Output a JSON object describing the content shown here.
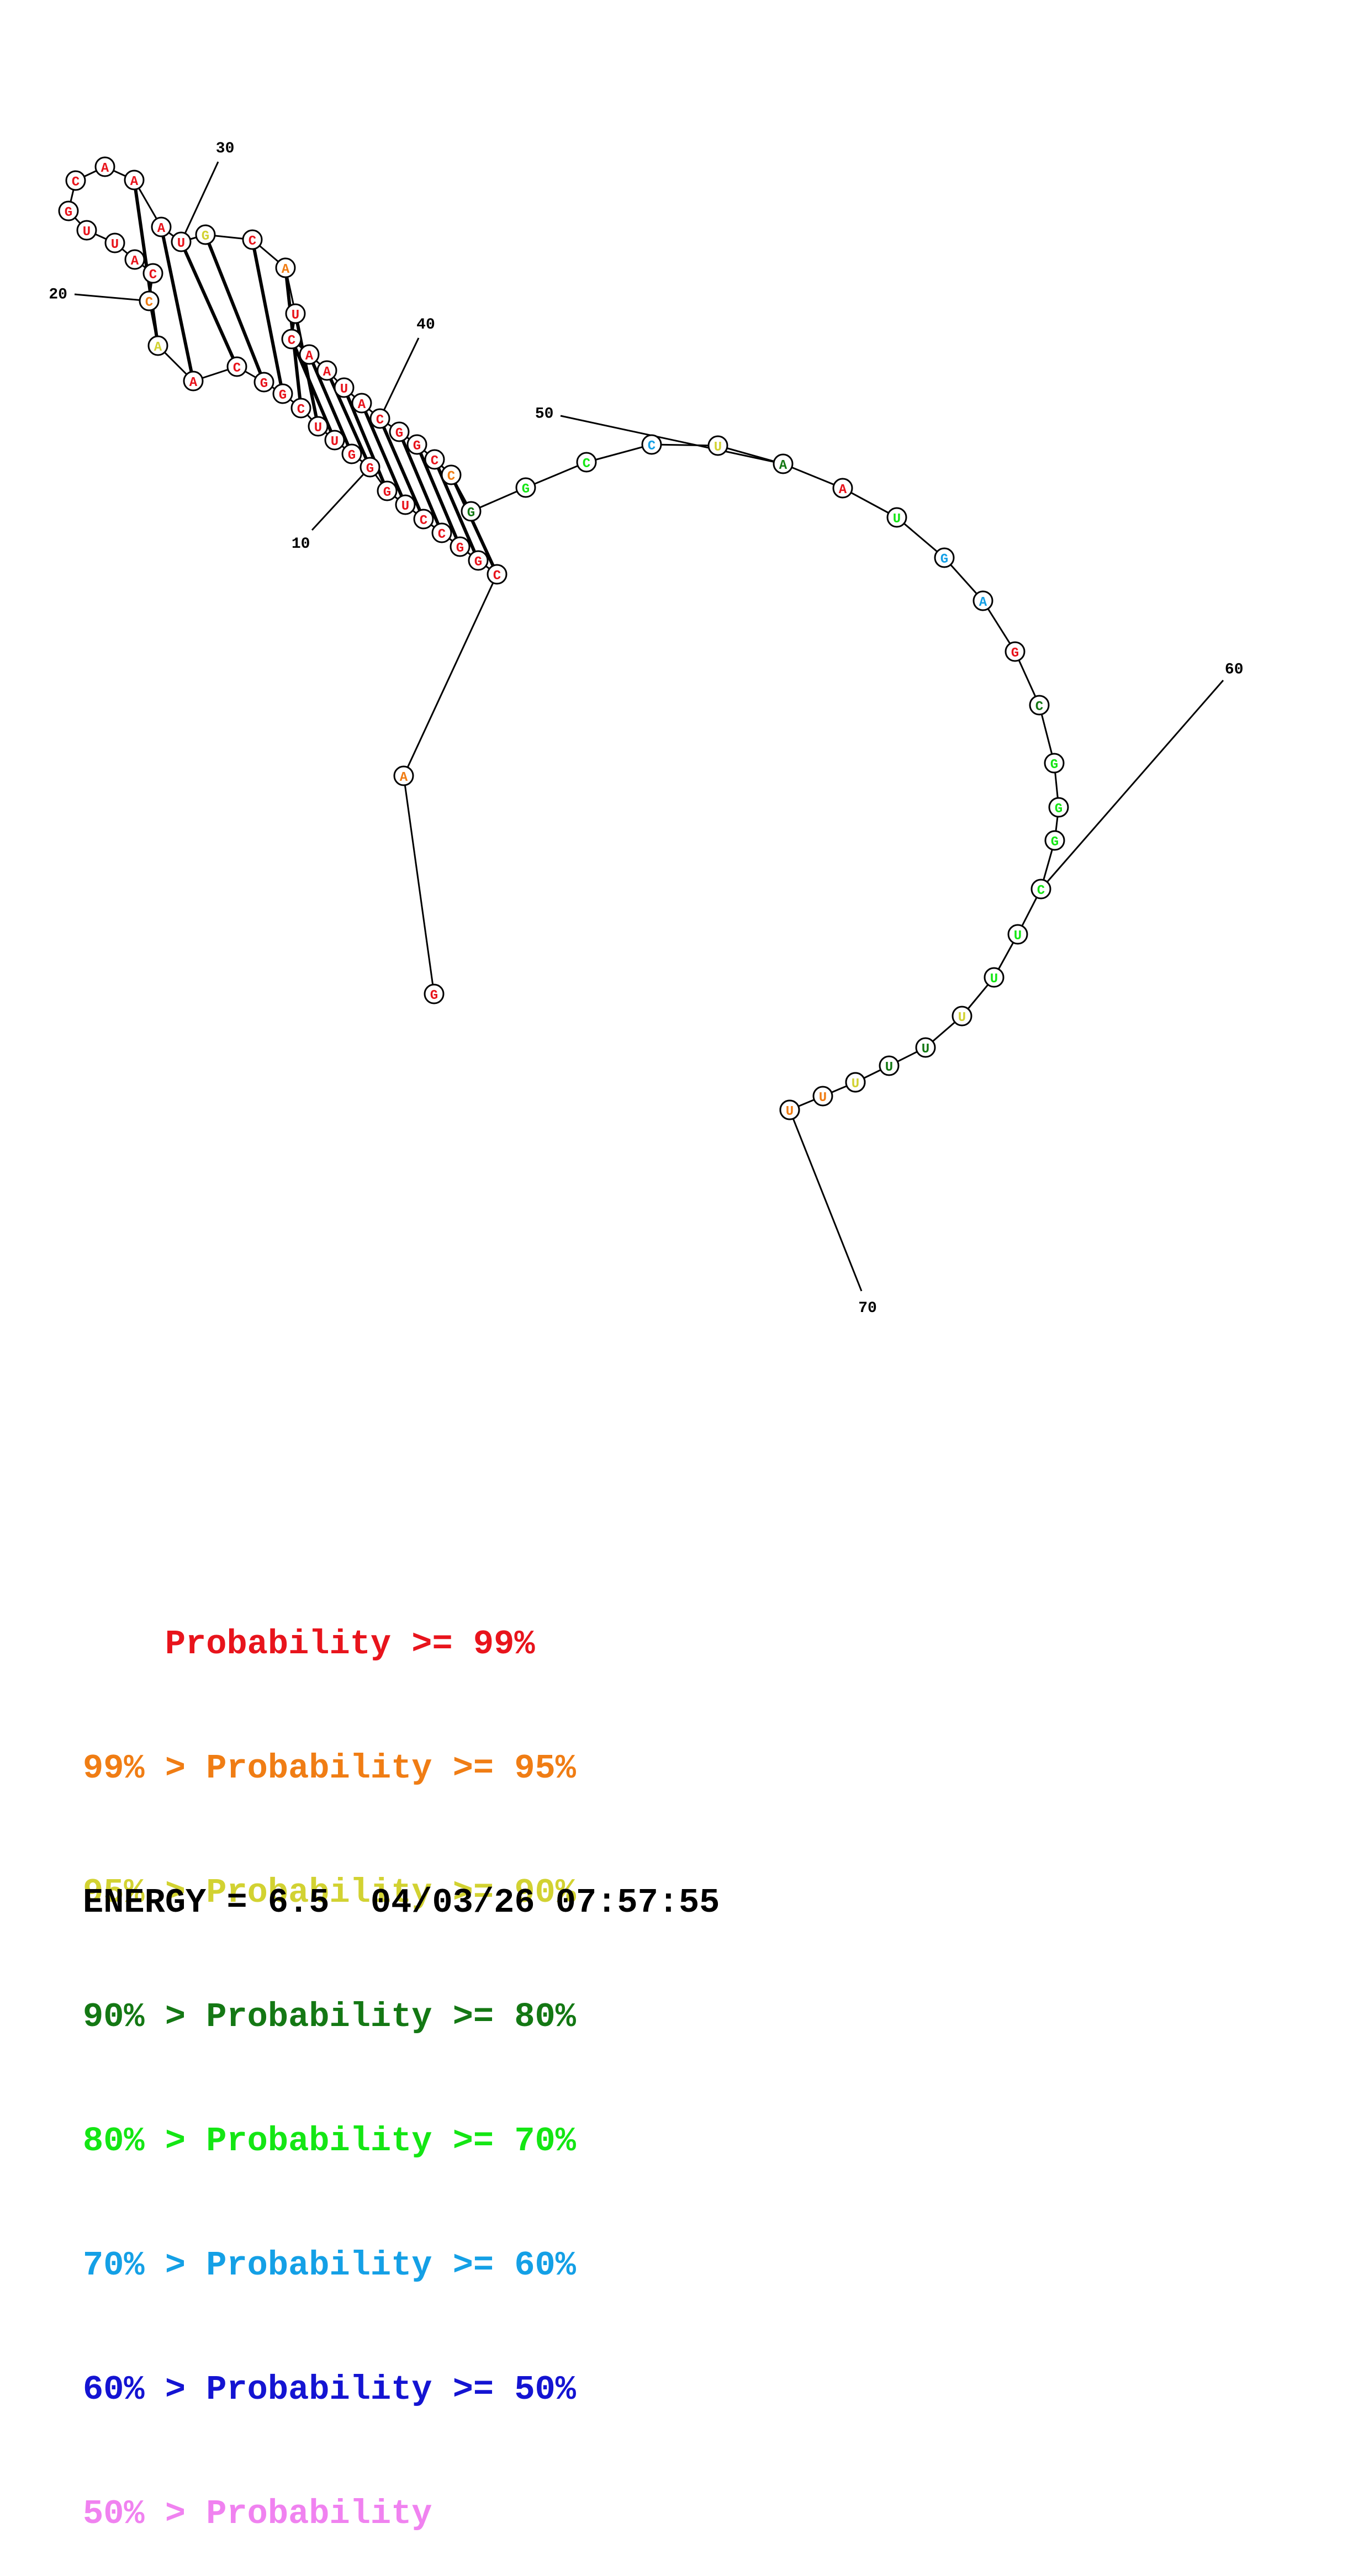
{
  "sequence": "GACGGCCUGGGUUCGGCAACCAUUGCAAAUGCAUCAAUACGGCCGGCCUAAUGAGCGGGCUUUUUUUUUU",
  "legend_colors": [
    "#e8141c",
    "#f07d14",
    "#d2d232",
    "#147814",
    "#14e614",
    "#14a0e6",
    "#1414d2",
    "#f082f0"
  ],
  "nt_colors": [
    0,
    1,
    0,
    0,
    0,
    0,
    0,
    0,
    0,
    0,
    0,
    0,
    0,
    0,
    0,
    0,
    0,
    0,
    2,
    1,
    0,
    0,
    0,
    0,
    0,
    0,
    0,
    0,
    0,
    0,
    2,
    0,
    1,
    0,
    0,
    0,
    0,
    0,
    0,
    0,
    0,
    0,
    0,
    1,
    3,
    4,
    4,
    5,
    2,
    3,
    0,
    4,
    5,
    5,
    0,
    3,
    4,
    4,
    4,
    4,
    4,
    4,
    2,
    3,
    3,
    3,
    2,
    1,
    1,
    1
  ],
  "pairs": [
    [
      3,
      44
    ],
    [
      4,
      43
    ],
    [
      5,
      42
    ],
    [
      6,
      41
    ],
    [
      7,
      40
    ],
    [
      8,
      39
    ],
    [
      9,
      38
    ],
    [
      10,
      37
    ],
    [
      11,
      36
    ],
    [
      12,
      35
    ],
    [
      13,
      34
    ],
    [
      14,
      33
    ],
    [
      15,
      32
    ],
    [
      16,
      31
    ],
    [
      17,
      30
    ],
    [
      18,
      29
    ],
    [
      19,
      28
    ]
  ],
  "position_labels": [
    "10",
    "20",
    "30",
    "40",
    "50",
    "60",
    "70"
  ],
  "legend": [
    {
      "prefix": "    ",
      "text": "Probability >= 99%"
    },
    {
      "prefix": "99% > ",
      "text": "Probability >= 95%"
    },
    {
      "prefix": "95% > ",
      "text": "Probability >= 90%"
    },
    {
      "prefix": "90% > ",
      "text": "Probability >= 80%"
    },
    {
      "prefix": "80% > ",
      "text": "Probability >= 70%"
    },
    {
      "prefix": "70% > ",
      "text": "Probability >= 60%"
    },
    {
      "prefix": "60% > ",
      "text": "Probability >= 50%"
    },
    {
      "prefix": "50% > ",
      "text": "Probability"
    }
  ],
  "energy_line": "ENERGY = 6.5  04/03/26 07:57:55"
}
